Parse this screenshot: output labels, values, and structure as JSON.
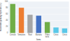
{
  "chart_data": {
    "type": "bar",
    "categories": [
      "Cereals",
      "Tomatoes",
      "Root",
      "Banana",
      "P.des\nherb.",
      "Citrus",
      "Citrus"
    ],
    "values": [
      92,
      80,
      58,
      55,
      35,
      18,
      15
    ],
    "colors": [
      "#70ad47",
      "#ed7d31",
      "#a6a6a6",
      "#4472c4",
      "#70ad47",
      "#5bc8e8",
      "#5bc8e8"
    ],
    "xlabel": "Items",
    "ylabel": "Households growing respective (%)",
    "ylim": [
      0,
      100
    ],
    "yticks": [
      0,
      20,
      40,
      60,
      80,
      100
    ],
    "grid": true
  }
}
